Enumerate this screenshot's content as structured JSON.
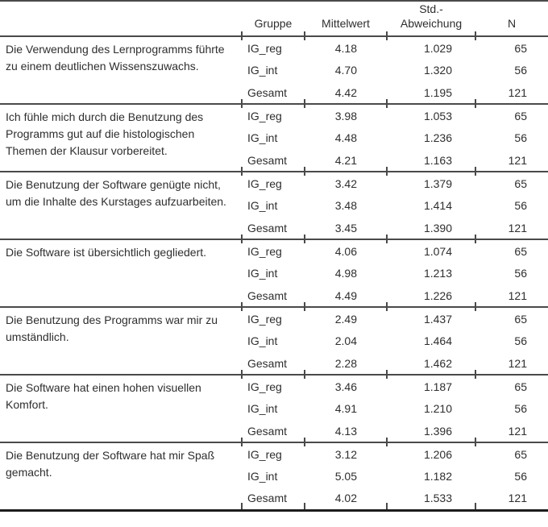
{
  "table": {
    "columns": {
      "gruppe": "Gruppe",
      "mittelwert": "Mittelwert",
      "std_line1": "Std.-",
      "std_line2": "Abweichung",
      "n": "N"
    },
    "rows": [
      {
        "question": "Die Verwendung des Lernprogramms führte zu einem deutlichen Wissenszuwachs.",
        "question_lines": [
          "Die Verwendung des Lernprogramms führte",
          "zu einem deutlichen Wissenszuwachs."
        ],
        "groups": [
          {
            "label": "IG_reg",
            "mean": "4.18",
            "sd": "1.029",
            "n": "65"
          },
          {
            "label": "IG_int",
            "mean": "4.70",
            "sd": "1.320",
            "n": "56"
          },
          {
            "label": "Gesamt",
            "mean": "4.42",
            "sd": "1.195",
            "n": "121"
          }
        ]
      },
      {
        "question": "Ich fühle mich durch die Benutzung des Programms gut auf die histologischen Themen der Klausur vorbereitet.",
        "question_lines": [
          "Ich fühle mich durch die Benutzung des",
          "Programms gut auf die histologischen",
          "Themen der Klausur vorbereitet."
        ],
        "groups": [
          {
            "label": "IG_reg",
            "mean": "3.98",
            "sd": "1.053",
            "n": "65"
          },
          {
            "label": "IG_int",
            "mean": "4.48",
            "sd": "1.236",
            "n": "56"
          },
          {
            "label": "Gesamt",
            "mean": "4.21",
            "sd": "1.163",
            "n": "121"
          }
        ]
      },
      {
        "question": "Die Benutzung der Software genügte nicht, um die Inhalte des Kurstages aufzuarbeiten.",
        "question_lines": [
          "Die Benutzung der Software genügte nicht,",
          "um die Inhalte des Kurstages aufzuarbeiten."
        ],
        "groups": [
          {
            "label": "IG_reg",
            "mean": "3.42",
            "sd": "1.379",
            "n": "65"
          },
          {
            "label": "IG_int",
            "mean": "3.48",
            "sd": "1.414",
            "n": "56"
          },
          {
            "label": "Gesamt",
            "mean": "3.45",
            "sd": "1.390",
            "n": "121"
          }
        ]
      },
      {
        "question": "Die Software ist übersichtlich gegliedert.",
        "question_lines": [
          "Die Software ist übersichtlich gegliedert."
        ],
        "groups": [
          {
            "label": "IG_reg",
            "mean": "4.06",
            "sd": "1.074",
            "n": "65"
          },
          {
            "label": "IG_int",
            "mean": "4.98",
            "sd": "1.213",
            "n": "56"
          },
          {
            "label": "Gesamt",
            "mean": "4.49",
            "sd": "1.226",
            "n": "121"
          }
        ]
      },
      {
        "question": "Die Benutzung des Programms war mir zu umständlich.",
        "question_lines": [
          "Die Benutzung des Programms war mir zu",
          "umständlich."
        ],
        "groups": [
          {
            "label": "IG_reg",
            "mean": "2.49",
            "sd": "1.437",
            "n": "65"
          },
          {
            "label": "IG_int",
            "mean": "2.04",
            "sd": "1.464",
            "n": "56"
          },
          {
            "label": "Gesamt",
            "mean": "2.28",
            "sd": "1.462",
            "n": "121"
          }
        ]
      },
      {
        "question": "Die Software hat einen hohen visuellen Komfort.",
        "question_lines": [
          "Die Software hat einen hohen visuellen",
          "Komfort."
        ],
        "groups": [
          {
            "label": "IG_reg",
            "mean": "3.46",
            "sd": "1.187",
            "n": "65"
          },
          {
            "label": "IG_int",
            "mean": "4.91",
            "sd": "1.210",
            "n": "56"
          },
          {
            "label": "Gesamt",
            "mean": "4.13",
            "sd": "1.396",
            "n": "121"
          }
        ]
      },
      {
        "question": "Die Benutzung der Software hat mir Spaß gemacht.",
        "question_lines": [
          "Die Benutzung der Software hat mir Spaß",
          "gemacht."
        ],
        "groups": [
          {
            "label": "IG_reg",
            "mean": "3.12",
            "sd": "1.206",
            "n": "65"
          },
          {
            "label": "IG_int",
            "mean": "5.05",
            "sd": "1.182",
            "n": "56"
          },
          {
            "label": "Gesamt",
            "mean": "4.02",
            "sd": "1.533",
            "n": "121"
          }
        ]
      }
    ]
  },
  "colors": {
    "rule_line": "#4a4a4a",
    "bottom_rule": "#1c1c1c",
    "text": "#2e2e2e",
    "background": "#ffffff"
  }
}
